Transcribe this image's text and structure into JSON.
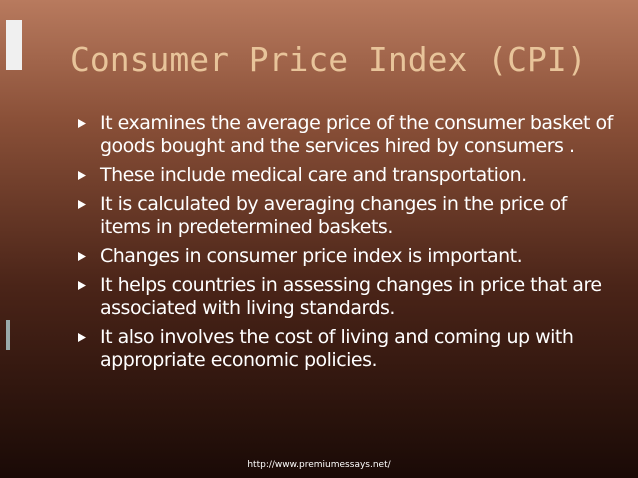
{
  "title": "Consumer Price Index (CPI)",
  "bullets": [
    "It examines the average price of the consumer basket of goods bought and the services hired by consumers .",
    "These include medical care and transportation.",
    "It is calculated by averaging changes in the price of items in predetermined baskets.",
    "Changes in consumer price index is important.",
    "It helps countries in assessing changes in price that are associated with living standards.",
    "It also involves the cost of living and coming up with appropriate economic policies."
  ],
  "footer": "http://www.premiumessays.net/"
}
